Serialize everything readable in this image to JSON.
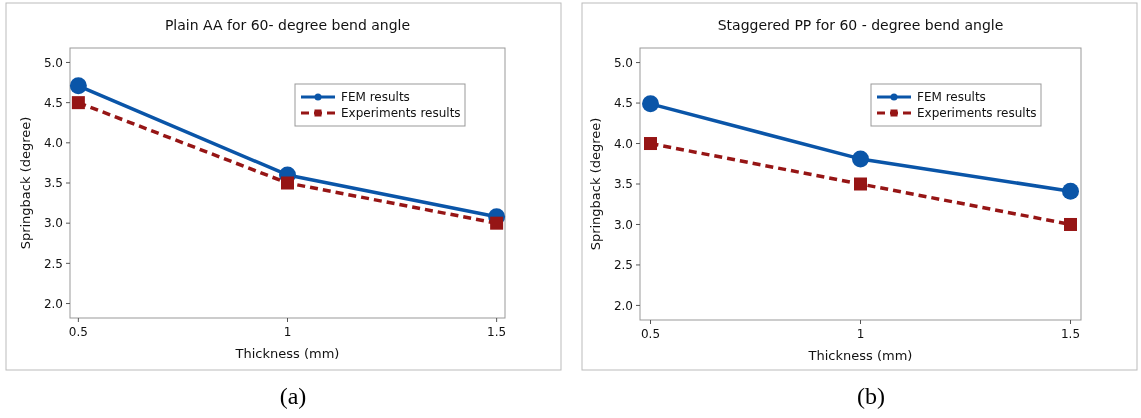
{
  "chart_data": [
    {
      "type": "line",
      "title": "Plain AA for 60- degree bend angle",
      "xlabel": "Thickness (mm)",
      "ylabel": "Springback (degree)",
      "x": [
        0.5,
        1,
        1.5
      ],
      "xlim": [
        0.48,
        1.52
      ],
      "xticks": [
        0.5,
        1,
        1.5
      ],
      "ylim": [
        1.82,
        5.18
      ],
      "yticks": [
        {
          "value": 2,
          "label": "2.0"
        },
        2.5,
        {
          "value": 3,
          "label": "3.0"
        },
        3.5,
        {
          "value": 4,
          "label": "4.0"
        },
        4.5,
        {
          "value": 5,
          "label": "5.0"
        }
      ],
      "grid": false,
      "legend": "top right",
      "annotations": [
        "(a)"
      ],
      "series": [
        {
          "name": "FEM results",
          "color": "#0a55a8",
          "values": [
            4.71,
            3.6,
            3.08
          ],
          "marker": "circle",
          "line_style": "solid"
        },
        {
          "name": "Experiments results",
          "color": "#961515",
          "values": [
            4.5,
            3.5,
            3.0
          ],
          "marker": "square",
          "line_style": "dashed"
        }
      ]
    },
    {
      "type": "line",
      "title": "Staggered PP for 60 - degree bend angle",
      "xlabel": "Thickness (mm)",
      "ylabel": "Springback (degree)",
      "x": [
        0.5,
        1,
        1.5
      ],
      "xlim": [
        0.475,
        1.525
      ],
      "xticks": [
        0.5,
        1,
        1.5
      ],
      "ylim": [
        1.82,
        5.18
      ],
      "yticks": [
        {
          "value": 2,
          "label": "2.0"
        },
        2.5,
        {
          "value": 3,
          "label": "3.0"
        },
        3.5,
        {
          "value": 4,
          "label": "4.0"
        },
        4.5,
        {
          "value": 5,
          "label": "5.0"
        }
      ],
      "grid": false,
      "legend": "top right",
      "annotations": [
        "(b)"
      ],
      "series": [
        {
          "name": "FEM results",
          "color": "#0a55a8",
          "values": [
            4.49,
            3.81,
            3.41
          ],
          "marker": "circle",
          "line_style": "solid"
        },
        {
          "name": "Experiments results",
          "color": "#961515",
          "values": [
            4.0,
            3.5,
            3.0
          ],
          "marker": "square",
          "line_style": "dashed"
        }
      ]
    }
  ]
}
